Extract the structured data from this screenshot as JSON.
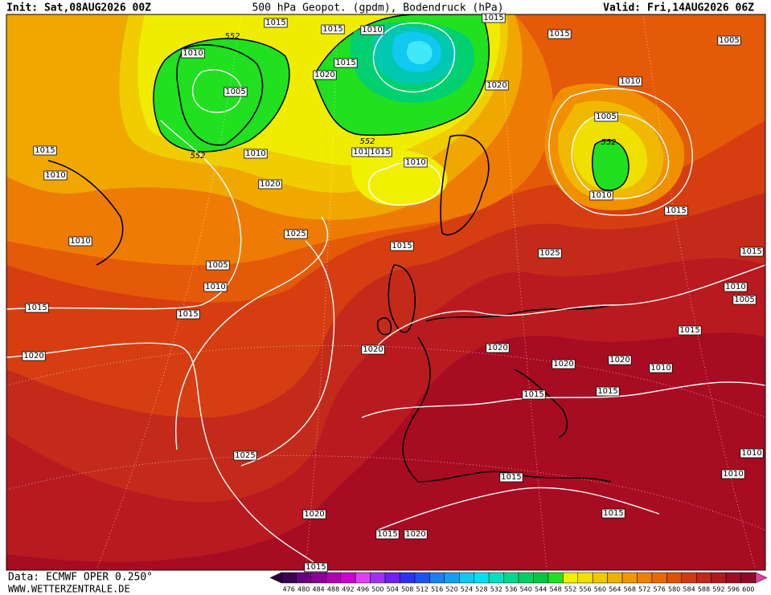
{
  "header": {
    "init": "Init: Sat,08AUG2026 00Z",
    "title": "500 hPa Geopot. (gpdm), Bodendruck (hPa)",
    "valid": "Valid: Fri,14AUG2026 06Z"
  },
  "footer": {
    "source": "Data: ECMWF OPER 0.250°",
    "site": "WWW.WETTERZENTRALE.DE"
  },
  "legend": {
    "levels": [
      476,
      480,
      484,
      488,
      492,
      496,
      500,
      504,
      508,
      512,
      516,
      520,
      524,
      528,
      532,
      536,
      540,
      544,
      548,
      552,
      556,
      560,
      564,
      568,
      572,
      576,
      580,
      584,
      588,
      592,
      596,
      600
    ],
    "colors": [
      "#3a0050",
      "#6a0080",
      "#8a0098",
      "#b000b0",
      "#d000d0",
      "#e040f0",
      "#a030f0",
      "#7020f0",
      "#3030f0",
      "#2050f0",
      "#1a80f0",
      "#10a0f0",
      "#10c8f0",
      "#00e0f0",
      "#00e0c0",
      "#00d890",
      "#00d060",
      "#00c840",
      "#20e020",
      "#f0f000",
      "#f0e000",
      "#f0c800",
      "#f0b000",
      "#f09800",
      "#f08000",
      "#e86800",
      "#e05000",
      "#d03a10",
      "#c02818",
      "#b01820",
      "#a00c24",
      "#900828"
    ]
  },
  "isobar_labels": [
    "1015",
    "1015",
    "1010",
    "1015",
    "1015",
    "1005",
    "1010",
    "1015",
    "1020",
    "1005",
    "1020",
    "1010",
    "1005",
    "552",
    "552",
    "552",
    "552",
    "1015",
    "1010",
    "1010",
    "1010",
    "1015",
    "1010",
    "1020",
    "1010",
    "1015",
    "1010",
    "1025",
    "1015",
    "1025",
    "1005",
    "1015",
    "1010",
    "1010",
    "1005",
    "1015",
    "1015",
    "1015",
    "1020",
    "1020",
    "1020",
    "1020",
    "1020",
    "1010",
    "1015",
    "1015",
    "1010",
    "1010",
    "1025",
    "1015",
    "1020",
    "1015",
    "1015",
    "1020",
    "1015"
  ]
}
